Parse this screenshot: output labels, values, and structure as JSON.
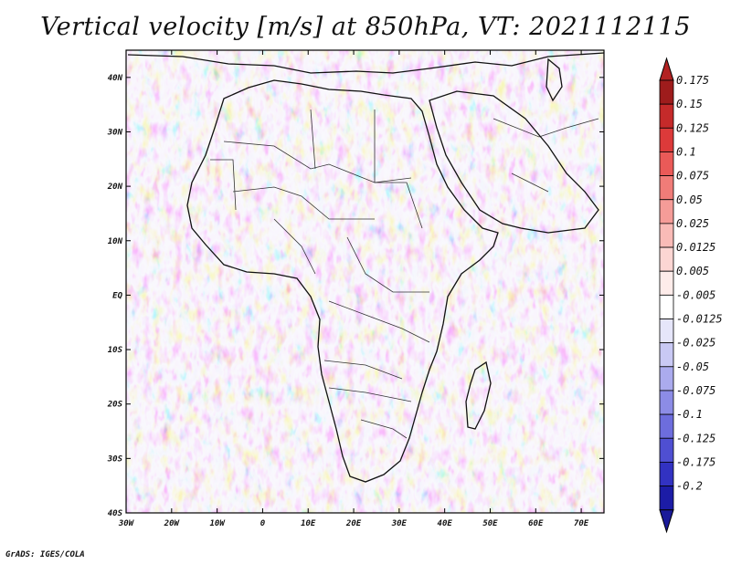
{
  "title": "Vertical velocity [m/s] at 850hPa, VT: 2021112115",
  "credit": "GrADS: IGES/COLA",
  "map": {
    "variable": "Vertical velocity",
    "units": "m/s",
    "level": "850hPa",
    "valid_time": "2021112115",
    "lon_range": [
      -30,
      75
    ],
    "lat_range": [
      -40,
      45
    ],
    "lon_ticks": [
      {
        "value": -30,
        "label": "30W"
      },
      {
        "value": -20,
        "label": "20W"
      },
      {
        "value": -10,
        "label": "10W"
      },
      {
        "value": 0,
        "label": "0"
      },
      {
        "value": 10,
        "label": "10E"
      },
      {
        "value": 20,
        "label": "20E"
      },
      {
        "value": 30,
        "label": "30E"
      },
      {
        "value": 40,
        "label": "40E"
      },
      {
        "value": 50,
        "label": "50E"
      },
      {
        "value": 60,
        "label": "60E"
      },
      {
        "value": 70,
        "label": "70E"
      }
    ],
    "lat_ticks": [
      {
        "value": 40,
        "label": "40N"
      },
      {
        "value": 30,
        "label": "30N"
      },
      {
        "value": 20,
        "label": "20N"
      },
      {
        "value": 10,
        "label": "10N"
      },
      {
        "value": 0,
        "label": "EQ"
      },
      {
        "value": -10,
        "label": "10S"
      },
      {
        "value": -20,
        "label": "20S"
      },
      {
        "value": -30,
        "label": "30S"
      },
      {
        "value": -40,
        "label": "40S"
      }
    ]
  },
  "colorbar": {
    "levels": [
      {
        "label": "0.175",
        "color": "#9e1c1c"
      },
      {
        "label": "0.15",
        "color": "#c52a2a"
      },
      {
        "label": "0.125",
        "color": "#dc3a3a"
      },
      {
        "label": "0.1",
        "color": "#ea5a58"
      },
      {
        "label": "0.075",
        "color": "#f07c78"
      },
      {
        "label": "0.05",
        "color": "#f59c98"
      },
      {
        "label": "0.025",
        "color": "#f9bbb7"
      },
      {
        "label": "0.0125",
        "color": "#fcd6d3"
      },
      {
        "label": "0.005",
        "color": "#feecea"
      },
      {
        "label": "-0.005",
        "color": "#ffffff"
      },
      {
        "label": "-0.0125",
        "color": "#e6e6fa"
      },
      {
        "label": "-0.025",
        "color": "#c9c9f4"
      },
      {
        "label": "-0.05",
        "color": "#ababee"
      },
      {
        "label": "-0.075",
        "color": "#8c8ce6"
      },
      {
        "label": "-0.1",
        "color": "#6d6ddd"
      },
      {
        "label": "-0.125",
        "color": "#4f4fd2"
      },
      {
        "label": "-0.175",
        "color": "#3232c2"
      },
      {
        "label": "-0.2",
        "color": "#1c1ca6"
      }
    ],
    "max_arrow_color": "#b22222",
    "min_arrow_color": "#1a1a9a"
  }
}
